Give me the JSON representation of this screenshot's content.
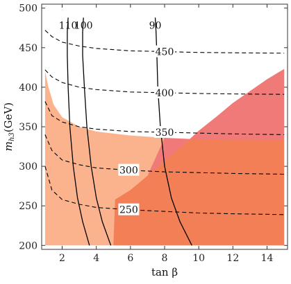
{
  "chart_data": {
    "type": "contour",
    "xlabel": "tan β",
    "ylabel_main": "m",
    "ylabel_sub": "h3",
    "ylabel_unit": "(GeV)",
    "xlim": [
      0.8,
      15.2
    ],
    "ylim": [
      195,
      505
    ],
    "x_ticks": [
      2,
      4,
      6,
      8,
      10,
      12,
      14
    ],
    "y_ticks": [
      200,
      250,
      300,
      350,
      400,
      450,
      500
    ],
    "colors": {
      "region_light": "#fbb38d",
      "region_dark": "#f27f55",
      "region_pink": "#ef7a78",
      "solid_contour": "#000000",
      "dashed_contour": "#000000"
    },
    "regions": [
      {
        "id": "light-orange-region",
        "fill": "region_light",
        "points": [
          [
            1.0,
            200
          ],
          [
            1.0,
            420
          ],
          [
            1.2,
            400
          ],
          [
            1.5,
            378
          ],
          [
            2.0,
            362
          ],
          [
            3.0,
            350
          ],
          [
            4.0,
            344
          ],
          [
            6.0,
            339
          ],
          [
            8.0,
            336
          ],
          [
            10.0,
            334
          ],
          [
            12.0,
            333
          ],
          [
            15.0,
            333
          ],
          [
            15.0,
            200
          ]
        ]
      },
      {
        "id": "dark-orange-region",
        "fill": "region_dark",
        "points": [
          [
            5.0,
            200
          ],
          [
            5.1,
            258
          ],
          [
            6.0,
            270
          ],
          [
            7.0,
            288
          ],
          [
            8.0,
            307
          ],
          [
            9.0,
            325
          ],
          [
            10.0,
            345
          ],
          [
            11.0,
            362
          ],
          [
            12.0,
            380
          ],
          [
            13.0,
            395
          ],
          [
            14.0,
            410
          ],
          [
            15.0,
            423
          ],
          [
            15.0,
            200
          ]
        ]
      },
      {
        "id": "pink-region",
        "fill": "region_pink",
        "points": [
          [
            7.0,
            288
          ],
          [
            8.0,
            307
          ],
          [
            9.0,
            325
          ],
          [
            10.0,
            345
          ],
          [
            11.0,
            362
          ],
          [
            12.0,
            380
          ],
          [
            13.0,
            395
          ],
          [
            14.0,
            410
          ],
          [
            15.0,
            423
          ],
          [
            15.0,
            333
          ],
          [
            12.0,
            333
          ],
          [
            10.0,
            334
          ],
          [
            8.0,
            336
          ]
        ]
      }
    ],
    "solid_contours": [
      {
        "label": "110",
        "points": [
          [
            2.35,
            488
          ],
          [
            2.3,
            470
          ],
          [
            2.3,
            440
          ],
          [
            2.35,
            400
          ],
          [
            2.45,
            350
          ],
          [
            2.65,
            300
          ],
          [
            2.9,
            260
          ],
          [
            3.2,
            230
          ],
          [
            3.6,
            200
          ]
        ]
      },
      {
        "label": "100",
        "points": [
          [
            3.25,
            488
          ],
          [
            3.2,
            470
          ],
          [
            3.2,
            440
          ],
          [
            3.3,
            400
          ],
          [
            3.45,
            350
          ],
          [
            3.7,
            300
          ],
          [
            4.0,
            260
          ],
          [
            4.35,
            230
          ],
          [
            4.85,
            200
          ]
        ]
      },
      {
        "label": "90",
        "points": [
          [
            7.45,
            488
          ],
          [
            7.5,
            470
          ],
          [
            7.55,
            440
          ],
          [
            7.6,
            400
          ],
          [
            7.75,
            350
          ],
          [
            8.0,
            300
          ],
          [
            8.4,
            260
          ],
          [
            8.9,
            230
          ],
          [
            9.6,
            200
          ]
        ]
      }
    ],
    "dashed_contours": [
      {
        "label": "450",
        "label_x": 8.0,
        "points": [
          [
            1.0,
            472
          ],
          [
            1.4,
            464
          ],
          [
            2.0,
            457
          ],
          [
            3.0,
            452
          ],
          [
            4.0,
            449
          ],
          [
            6.0,
            446
          ],
          [
            8.0,
            445
          ],
          [
            10.0,
            444
          ],
          [
            12.0,
            443.5
          ],
          [
            15.0,
            443
          ]
        ]
      },
      {
        "label": "400",
        "label_x": 8.0,
        "points": [
          [
            1.0,
            422
          ],
          [
            1.4,
            413
          ],
          [
            2.0,
            406
          ],
          [
            3.0,
            400
          ],
          [
            4.0,
            397
          ],
          [
            6.0,
            394
          ],
          [
            8.0,
            393
          ],
          [
            10.0,
            392
          ],
          [
            12.0,
            391.5
          ],
          [
            15.0,
            391
          ]
        ]
      },
      {
        "label": "350",
        "label_x": 8.0,
        "points": [
          [
            1.0,
            382
          ],
          [
            1.4,
            364
          ],
          [
            2.0,
            356
          ],
          [
            3.0,
            350
          ],
          [
            4.0,
            347
          ],
          [
            6.0,
            344
          ],
          [
            8.0,
            343
          ],
          [
            10.0,
            342
          ],
          [
            12.0,
            341
          ],
          [
            15.0,
            340
          ]
        ]
      },
      {
        "label": "300",
        "label_x": 5.9,
        "points": [
          [
            1.0,
            340
          ],
          [
            1.4,
            320
          ],
          [
            2.0,
            308
          ],
          [
            3.0,
            302
          ],
          [
            4.0,
            298
          ],
          [
            6.0,
            295
          ],
          [
            8.0,
            293
          ],
          [
            10.0,
            292
          ],
          [
            12.0,
            291
          ],
          [
            15.0,
            290
          ]
        ]
      },
      {
        "label": "250",
        "label_x": 5.9,
        "points": [
          [
            1.0,
            300
          ],
          [
            1.4,
            270
          ],
          [
            2.0,
            258
          ],
          [
            3.0,
            252
          ],
          [
            4.0,
            248
          ],
          [
            6.0,
            245
          ],
          [
            8.0,
            243
          ],
          [
            10.0,
            241
          ],
          [
            12.0,
            240
          ],
          [
            15.0,
            239
          ]
        ]
      }
    ]
  }
}
